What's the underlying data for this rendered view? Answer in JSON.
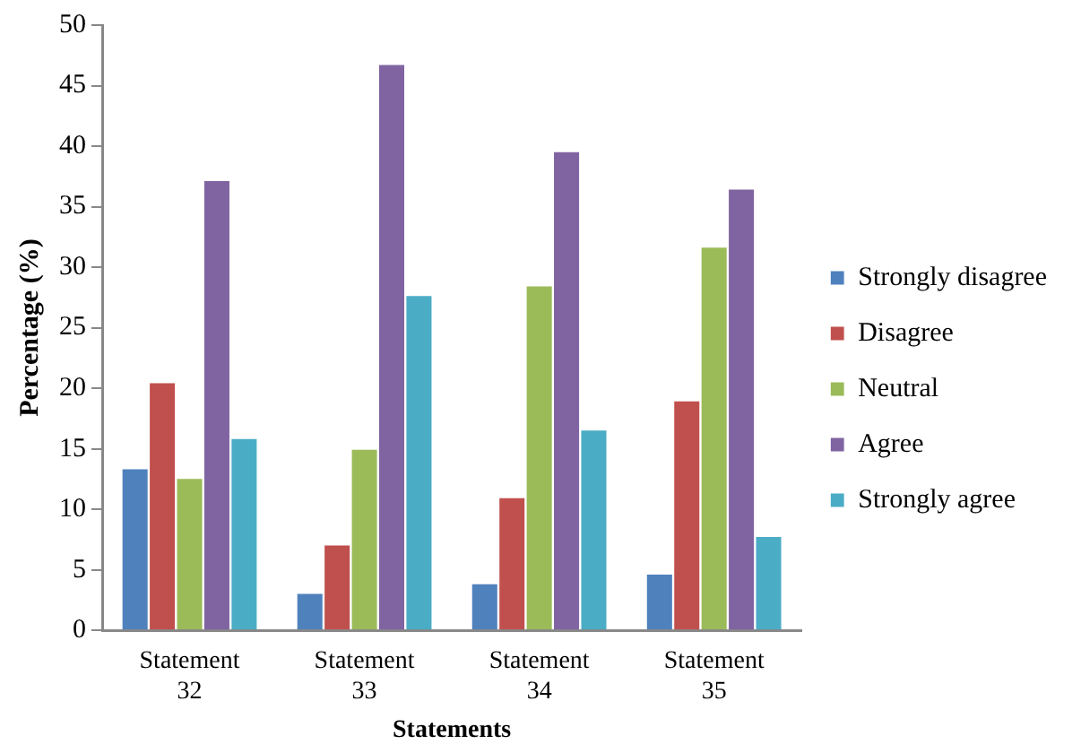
{
  "chart_data": {
    "type": "bar",
    "xlabel": "Statements",
    "ylabel": "Percentage (%)",
    "categories": [
      "Statement 32",
      "Statement 33",
      "Statement 34",
      "Statement 35"
    ],
    "series": [
      {
        "name": "Strongly disagree",
        "color": "#4f81bd",
        "values": [
          13.4,
          3.1,
          3.9,
          4.7
        ]
      },
      {
        "name": "Disagree",
        "color": "#c0504d",
        "values": [
          20.5,
          7.1,
          11.0,
          19.0
        ]
      },
      {
        "name": "Neutral",
        "color": "#9bbb59",
        "values": [
          12.6,
          15.0,
          28.5,
          31.7
        ]
      },
      {
        "name": "Agree",
        "color": "#8064a2",
        "values": [
          37.2,
          46.8,
          39.6,
          36.5
        ]
      },
      {
        "name": "Strongly agree",
        "color": "#4bacc6",
        "values": [
          15.9,
          27.7,
          16.6,
          7.8
        ]
      }
    ],
    "ylim": [
      0,
      50
    ],
    "yticks": [
      0,
      5,
      10,
      15,
      20,
      25,
      30,
      35,
      40,
      45,
      50
    ],
    "grid": false,
    "legend": "right"
  }
}
